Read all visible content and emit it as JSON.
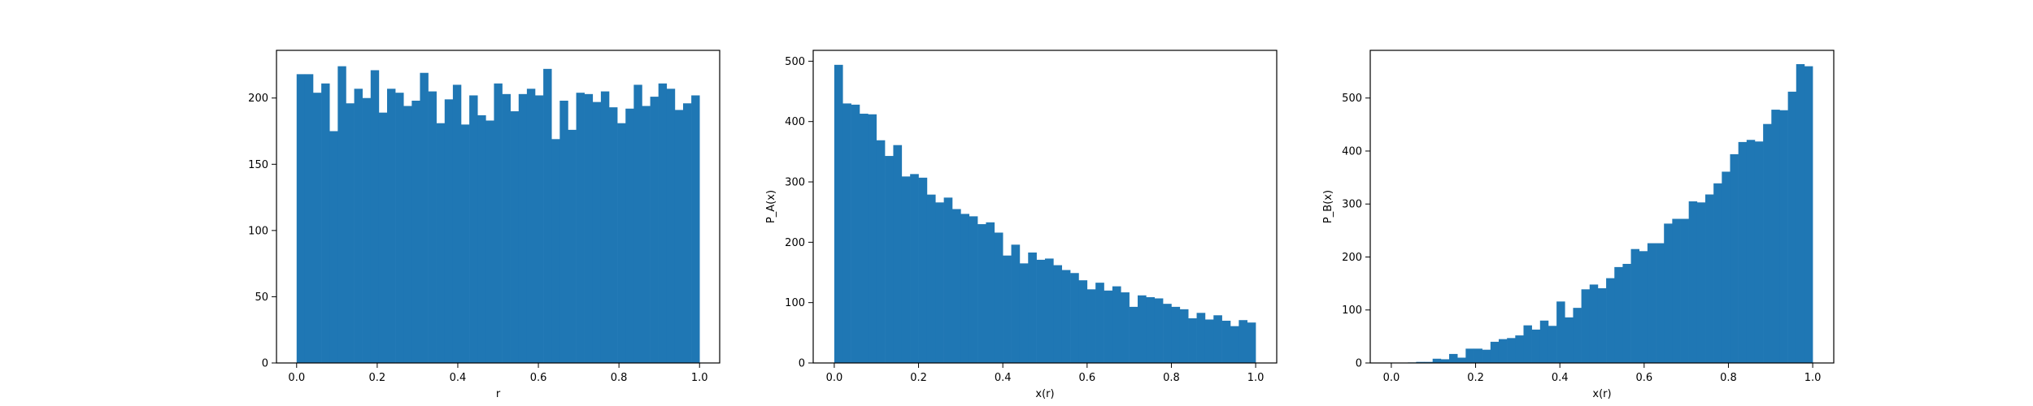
{
  "colors": {
    "bar": "#1f77b4",
    "axis": "#000000",
    "background": "#ffffff"
  },
  "chart_data": [
    {
      "type": "histogram",
      "xlabel": "r",
      "ylabel": "",
      "xlim": [
        -0.05,
        1.05
      ],
      "ylim": [
        0,
        236
      ],
      "xticks": [
        0.0,
        0.2,
        0.4,
        0.6,
        0.8,
        1.0
      ],
      "xtick_labels": [
        "0.0",
        "0.2",
        "0.4",
        "0.6",
        "0.8",
        "1.0"
      ],
      "yticks": [
        0,
        50,
        100,
        150,
        200
      ],
      "ytick_labels": [
        "0",
        "50",
        "100",
        "150",
        "200"
      ],
      "bin_range": [
        0,
        1
      ],
      "counts": [
        218,
        218,
        204,
        211,
        175,
        224,
        196,
        207,
        200,
        221,
        189,
        207,
        204,
        194,
        198,
        219,
        205,
        181,
        199,
        210,
        180,
        202,
        187,
        183,
        211,
        203,
        190,
        203,
        207,
        202,
        222,
        169,
        198,
        176,
        204,
        203,
        197,
        205,
        193,
        181,
        192,
        210,
        194,
        201,
        211,
        207,
        191,
        196,
        202
      ]
    },
    {
      "type": "histogram",
      "xlabel": "x(r)",
      "ylabel": "P_A(x)",
      "xlim": [
        -0.05,
        1.05
      ],
      "ylim": [
        0,
        518
      ],
      "xticks": [
        0.0,
        0.2,
        0.4,
        0.6,
        0.8,
        1.0
      ],
      "xtick_labels": [
        "0.0",
        "0.2",
        "0.4",
        "0.6",
        "0.8",
        "1.0"
      ],
      "yticks": [
        0,
        100,
        200,
        300,
        400,
        500
      ],
      "ytick_labels": [
        "0",
        "100",
        "200",
        "300",
        "400",
        "500"
      ],
      "bin_range": [
        0,
        1
      ],
      "counts": [
        494,
        430,
        428,
        413,
        412,
        369,
        343,
        361,
        309,
        313,
        307,
        279,
        266,
        274,
        255,
        247,
        243,
        230,
        233,
        216,
        178,
        196,
        165,
        183,
        171,
        173,
        162,
        154,
        149,
        137,
        122,
        133,
        120,
        127,
        117,
        93,
        112,
        109,
        107,
        98,
        93,
        89,
        74,
        83,
        72,
        79,
        70,
        61,
        71,
        67
      ]
    },
    {
      "type": "histogram",
      "xlabel": "x(r)",
      "ylabel": "P_B(x)",
      "xlim": [
        -0.05,
        1.05
      ],
      "ylim": [
        0,
        590
      ],
      "xticks": [
        0.0,
        0.2,
        0.4,
        0.6,
        0.8,
        1.0
      ],
      "xtick_labels": [
        "0.0",
        "0.2",
        "0.4",
        "0.6",
        "0.8",
        "1.0"
      ],
      "yticks": [
        0,
        100,
        200,
        300,
        400,
        500
      ],
      "ytick_labels": [
        "0",
        "100",
        "200",
        "300",
        "400",
        "500"
      ],
      "bin_range": [
        0,
        1
      ],
      "counts": [
        0,
        0,
        1,
        2,
        2,
        8,
        7,
        17,
        10,
        27,
        27,
        25,
        40,
        45,
        47,
        52,
        71,
        63,
        80,
        70,
        116,
        86,
        104,
        139,
        148,
        141,
        160,
        181,
        187,
        215,
        211,
        226,
        226,
        263,
        272,
        272,
        305,
        303,
        318,
        339,
        361,
        394,
        417,
        421,
        418,
        451,
        478,
        477,
        512,
        564,
        560
      ]
    }
  ]
}
